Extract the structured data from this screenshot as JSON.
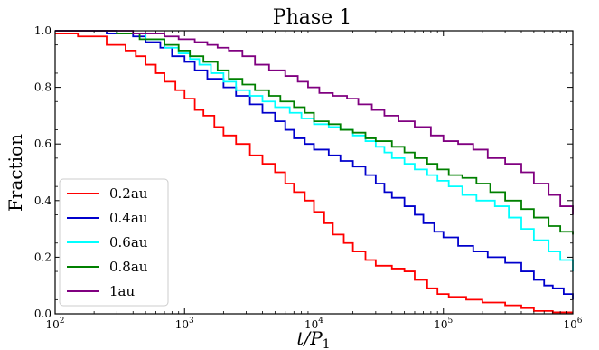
{
  "chart_data": {
    "type": "line",
    "step": true,
    "title": "Phase 1",
    "xlabel": "t/P",
    "xlabel_sub": "1",
    "ylabel": "Fraction",
    "xscale": "log",
    "xlim": [
      100,
      1000000
    ],
    "ylim": [
      0.0,
      1.0
    ],
    "xticks": [
      {
        "value": 100,
        "base": "10",
        "exp": "2"
      },
      {
        "value": 1000,
        "base": "10",
        "exp": "3"
      },
      {
        "value": 10000,
        "base": "10",
        "exp": "4"
      },
      {
        "value": 100000,
        "base": "10",
        "exp": "5"
      },
      {
        "value": 1000000,
        "base": "10",
        "exp": "6"
      }
    ],
    "yticks": [
      {
        "value": 0.0,
        "label": "0.0"
      },
      {
        "value": 0.2,
        "label": "0.2"
      },
      {
        "value": 0.4,
        "label": "0.4"
      },
      {
        "value": 0.6,
        "label": "0.6"
      },
      {
        "value": 0.8,
        "label": "0.8"
      },
      {
        "value": 1.0,
        "label": "1.0"
      }
    ],
    "grid": false,
    "legend_position": "lower-left",
    "series": [
      {
        "name": "0.2au",
        "color": "#ff0000",
        "points": [
          [
            100,
            0.99
          ],
          [
            150,
            0.98
          ],
          [
            250,
            0.95
          ],
          [
            350,
            0.93
          ],
          [
            420,
            0.91
          ],
          [
            500,
            0.88
          ],
          [
            600,
            0.85
          ],
          [
            700,
            0.82
          ],
          [
            850,
            0.79
          ],
          [
            1000,
            0.76
          ],
          [
            1200,
            0.72
          ],
          [
            1400,
            0.7
          ],
          [
            1700,
            0.66
          ],
          [
            2000,
            0.63
          ],
          [
            2500,
            0.6
          ],
          [
            3200,
            0.56
          ],
          [
            4000,
            0.53
          ],
          [
            5000,
            0.5
          ],
          [
            6000,
            0.46
          ],
          [
            7000,
            0.43
          ],
          [
            8500,
            0.4
          ],
          [
            10000,
            0.36
          ],
          [
            12000,
            0.32
          ],
          [
            14000,
            0.28
          ],
          [
            17000,
            0.25
          ],
          [
            20000,
            0.22
          ],
          [
            25000,
            0.19
          ],
          [
            30000,
            0.17
          ],
          [
            40000,
            0.16
          ],
          [
            50000,
            0.15
          ],
          [
            60000,
            0.12
          ],
          [
            75000,
            0.09
          ],
          [
            90000,
            0.07
          ],
          [
            110000,
            0.06
          ],
          [
            150000,
            0.05
          ],
          [
            200000,
            0.04
          ],
          [
            300000,
            0.03
          ],
          [
            400000,
            0.02
          ],
          [
            500000,
            0.01
          ],
          [
            700000,
            0.005
          ],
          [
            1000000,
            0.005
          ]
        ]
      },
      {
        "name": "0.4au",
        "color": "#0000cc",
        "points": [
          [
            100,
            1.0
          ],
          [
            250,
            0.99
          ],
          [
            400,
            0.98
          ],
          [
            500,
            0.96
          ],
          [
            650,
            0.94
          ],
          [
            800,
            0.91
          ],
          [
            1000,
            0.89
          ],
          [
            1200,
            0.86
          ],
          [
            1500,
            0.83
          ],
          [
            2000,
            0.8
          ],
          [
            2500,
            0.77
          ],
          [
            3200,
            0.74
          ],
          [
            4000,
            0.71
          ],
          [
            5000,
            0.68
          ],
          [
            6000,
            0.65
          ],
          [
            7000,
            0.62
          ],
          [
            8500,
            0.6
          ],
          [
            10000,
            0.58
          ],
          [
            13000,
            0.56
          ],
          [
            16000,
            0.54
          ],
          [
            20000,
            0.52
          ],
          [
            25000,
            0.49
          ],
          [
            30000,
            0.46
          ],
          [
            35000,
            0.43
          ],
          [
            40000,
            0.41
          ],
          [
            50000,
            0.38
          ],
          [
            60000,
            0.35
          ],
          [
            70000,
            0.32
          ],
          [
            85000,
            0.29
          ],
          [
            100000,
            0.27
          ],
          [
            130000,
            0.24
          ],
          [
            170000,
            0.22
          ],
          [
            220000,
            0.2
          ],
          [
            300000,
            0.18
          ],
          [
            400000,
            0.15
          ],
          [
            500000,
            0.12
          ],
          [
            600000,
            0.1
          ],
          [
            700000,
            0.09
          ],
          [
            850000,
            0.07
          ],
          [
            1000000,
            0.05
          ]
        ]
      },
      {
        "name": "0.6au",
        "color": "#00ffff",
        "points": [
          [
            100,
            1.0
          ],
          [
            300,
            0.99
          ],
          [
            500,
            0.97
          ],
          [
            700,
            0.94
          ],
          [
            900,
            0.92
          ],
          [
            1100,
            0.9
          ],
          [
            1300,
            0.88
          ],
          [
            1600,
            0.85
          ],
          [
            2000,
            0.82
          ],
          [
            2500,
            0.79
          ],
          [
            3200,
            0.77
          ],
          [
            4000,
            0.75
          ],
          [
            5000,
            0.73
          ],
          [
            6500,
            0.71
          ],
          [
            8000,
            0.69
          ],
          [
            10000,
            0.67
          ],
          [
            13000,
            0.66
          ],
          [
            16000,
            0.65
          ],
          [
            20000,
            0.63
          ],
          [
            25000,
            0.61
          ],
          [
            30000,
            0.59
          ],
          [
            35000,
            0.57
          ],
          [
            40000,
            0.55
          ],
          [
            50000,
            0.53
          ],
          [
            60000,
            0.51
          ],
          [
            75000,
            0.49
          ],
          [
            90000,
            0.47
          ],
          [
            110000,
            0.45
          ],
          [
            140000,
            0.42
          ],
          [
            180000,
            0.4
          ],
          [
            250000,
            0.38
          ],
          [
            320000,
            0.34
          ],
          [
            400000,
            0.3
          ],
          [
            500000,
            0.26
          ],
          [
            650000,
            0.22
          ],
          [
            800000,
            0.19
          ],
          [
            1000000,
            0.15
          ]
        ]
      },
      {
        "name": "0.8au",
        "color": "#008000",
        "points": [
          [
            100,
            1.0
          ],
          [
            300,
            0.99
          ],
          [
            450,
            0.97
          ],
          [
            700,
            0.95
          ],
          [
            900,
            0.93
          ],
          [
            1100,
            0.91
          ],
          [
            1400,
            0.89
          ],
          [
            1800,
            0.86
          ],
          [
            2200,
            0.83
          ],
          [
            2800,
            0.81
          ],
          [
            3500,
            0.79
          ],
          [
            4500,
            0.77
          ],
          [
            5500,
            0.75
          ],
          [
            7000,
            0.73
          ],
          [
            8500,
            0.71
          ],
          [
            10000,
            0.68
          ],
          [
            13000,
            0.67
          ],
          [
            16000,
            0.65
          ],
          [
            20000,
            0.64
          ],
          [
            25000,
            0.62
          ],
          [
            30000,
            0.61
          ],
          [
            40000,
            0.59
          ],
          [
            50000,
            0.57
          ],
          [
            60000,
            0.55
          ],
          [
            75000,
            0.53
          ],
          [
            90000,
            0.51
          ],
          [
            110000,
            0.49
          ],
          [
            140000,
            0.48
          ],
          [
            180000,
            0.46
          ],
          [
            230000,
            0.43
          ],
          [
            300000,
            0.4
          ],
          [
            400000,
            0.37
          ],
          [
            500000,
            0.34
          ],
          [
            650000,
            0.31
          ],
          [
            800000,
            0.29
          ],
          [
            1000000,
            0.28
          ]
        ]
      },
      {
        "name": "1au",
        "color": "#800080",
        "points": [
          [
            100,
            1.0
          ],
          [
            400,
            0.99
          ],
          [
            700,
            0.98
          ],
          [
            900,
            0.97
          ],
          [
            1200,
            0.96
          ],
          [
            1500,
            0.95
          ],
          [
            1800,
            0.94
          ],
          [
            2200,
            0.93
          ],
          [
            2800,
            0.91
          ],
          [
            3500,
            0.88
          ],
          [
            4500,
            0.86
          ],
          [
            6000,
            0.84
          ],
          [
            7500,
            0.82
          ],
          [
            9000,
            0.8
          ],
          [
            11000,
            0.78
          ],
          [
            14000,
            0.77
          ],
          [
            18000,
            0.76
          ],
          [
            22000,
            0.74
          ],
          [
            28000,
            0.72
          ],
          [
            35000,
            0.7
          ],
          [
            45000,
            0.68
          ],
          [
            60000,
            0.66
          ],
          [
            80000,
            0.63
          ],
          [
            100000,
            0.61
          ],
          [
            130000,
            0.6
          ],
          [
            170000,
            0.58
          ],
          [
            220000,
            0.55
          ],
          [
            300000,
            0.53
          ],
          [
            400000,
            0.5
          ],
          [
            500000,
            0.46
          ],
          [
            650000,
            0.42
          ],
          [
            800000,
            0.38
          ],
          [
            1000000,
            0.35
          ]
        ]
      }
    ]
  }
}
